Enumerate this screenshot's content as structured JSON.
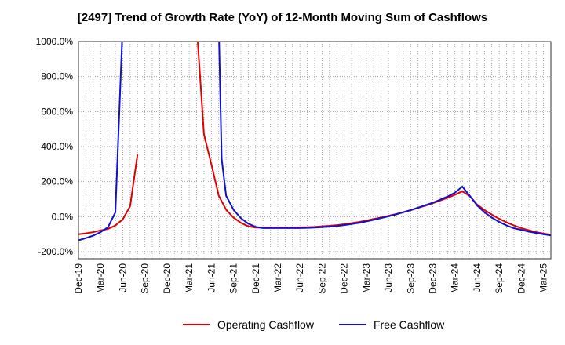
{
  "chart_data": {
    "type": "line",
    "title": "[2497]  Trend of Growth Rate (YoY) of 12-Month Moving Sum of Cashflows",
    "xlabel": "",
    "ylabel": "",
    "ylim": [
      -240,
      1000
    ],
    "y_ticks": [
      1000,
      800,
      600,
      400,
      200,
      0,
      -200
    ],
    "y_tick_labels": [
      "1000.0%",
      "800.0%",
      "600.0%",
      "400.0%",
      "200.0%",
      "0.0%",
      "-200.0%"
    ],
    "x_tick_labels": [
      "Dec-19",
      "Mar-20",
      "Jun-20",
      "Sep-20",
      "Dec-20",
      "Mar-21",
      "Jun-21",
      "Sep-21",
      "Dec-21",
      "Mar-22",
      "Jun-22",
      "Sep-22",
      "Dec-22",
      "Mar-23",
      "Jun-23",
      "Sep-23",
      "Dec-23",
      "Mar-24",
      "Jun-24",
      "Sep-24",
      "Dec-24",
      "Mar-25"
    ],
    "x_month_count": 64,
    "grid": true,
    "legend_position": "bottom",
    "series": [
      {
        "name": "Operating Cashflow",
        "color": "#e00000",
        "points": [
          [
            0,
            -100
          ],
          [
            1,
            -95
          ],
          [
            2,
            -88
          ],
          [
            3,
            -78
          ],
          [
            4,
            -70
          ],
          [
            5,
            -50
          ],
          [
            6,
            -15
          ],
          [
            7,
            60
          ],
          [
            8,
            355
          ],
          [
            null,
            null
          ],
          [
            16,
            1100
          ],
          [
            17,
            470
          ],
          [
            18,
            300
          ],
          [
            19,
            120
          ],
          [
            20,
            40
          ],
          [
            21,
            -5
          ],
          [
            22,
            -35
          ],
          [
            23,
            -55
          ],
          [
            24,
            -62
          ],
          [
            25,
            -62
          ],
          [
            26,
            -62
          ],
          [
            27,
            -62
          ],
          [
            28,
            -62
          ],
          [
            29,
            -62
          ],
          [
            30,
            -61
          ],
          [
            31,
            -60
          ],
          [
            32,
            -58
          ],
          [
            33,
            -55
          ],
          [
            34,
            -52
          ],
          [
            35,
            -48
          ],
          [
            36,
            -43
          ],
          [
            37,
            -37
          ],
          [
            38,
            -30
          ],
          [
            39,
            -22
          ],
          [
            40,
            -13
          ],
          [
            41,
            -5
          ],
          [
            42,
            5
          ],
          [
            43,
            15
          ],
          [
            44,
            26
          ],
          [
            45,
            37
          ],
          [
            46,
            50
          ],
          [
            47,
            63
          ],
          [
            48,
            77
          ],
          [
            49,
            92
          ],
          [
            50,
            108
          ],
          [
            51,
            125
          ],
          [
            52,
            145
          ],
          [
            53,
            118
          ],
          [
            54,
            70
          ],
          [
            55,
            38
          ],
          [
            56,
            12
          ],
          [
            57,
            -12
          ],
          [
            58,
            -32
          ],
          [
            59,
            -50
          ],
          [
            60,
            -65
          ],
          [
            61,
            -77
          ],
          [
            62,
            -88
          ],
          [
            63,
            -96
          ],
          [
            64,
            -103
          ],
          [
            65,
            -110
          ],
          [
            66,
            -115
          ]
        ]
      },
      {
        "name": "Free Cashflow",
        "color": "#1010d0",
        "points": [
          [
            0,
            -135
          ],
          [
            1,
            -122
          ],
          [
            2,
            -108
          ],
          [
            3,
            -88
          ],
          [
            4,
            -60
          ],
          [
            5,
            25
          ],
          [
            6,
            1100
          ],
          [
            null,
            null
          ],
          [
            19,
            1100
          ],
          [
            19.4,
            330
          ],
          [
            20,
            120
          ],
          [
            21,
            40
          ],
          [
            22,
            -8
          ],
          [
            23,
            -40
          ],
          [
            24,
            -58
          ],
          [
            25,
            -65
          ],
          [
            26,
            -65
          ],
          [
            27,
            -65
          ],
          [
            28,
            -65
          ],
          [
            29,
            -65
          ],
          [
            30,
            -65
          ],
          [
            31,
            -64
          ],
          [
            32,
            -62
          ],
          [
            33,
            -60
          ],
          [
            34,
            -57
          ],
          [
            35,
            -53
          ],
          [
            36,
            -48
          ],
          [
            37,
            -42
          ],
          [
            38,
            -35
          ],
          [
            39,
            -27
          ],
          [
            40,
            -18
          ],
          [
            41,
            -8
          ],
          [
            42,
            2
          ],
          [
            43,
            13
          ],
          [
            44,
            25
          ],
          [
            45,
            38
          ],
          [
            46,
            52
          ],
          [
            47,
            66
          ],
          [
            48,
            80
          ],
          [
            49,
            97
          ],
          [
            50,
            115
          ],
          [
            51,
            137
          ],
          [
            52,
            172
          ],
          [
            53,
            120
          ],
          [
            54,
            65
          ],
          [
            55,
            25
          ],
          [
            56,
            -5
          ],
          [
            57,
            -30
          ],
          [
            58,
            -50
          ],
          [
            59,
            -66
          ],
          [
            60,
            -75
          ],
          [
            61,
            -85
          ],
          [
            62,
            -93
          ],
          [
            63,
            -100
          ],
          [
            64,
            -107
          ],
          [
            65,
            -113
          ],
          [
            66,
            -120
          ]
        ]
      }
    ]
  }
}
